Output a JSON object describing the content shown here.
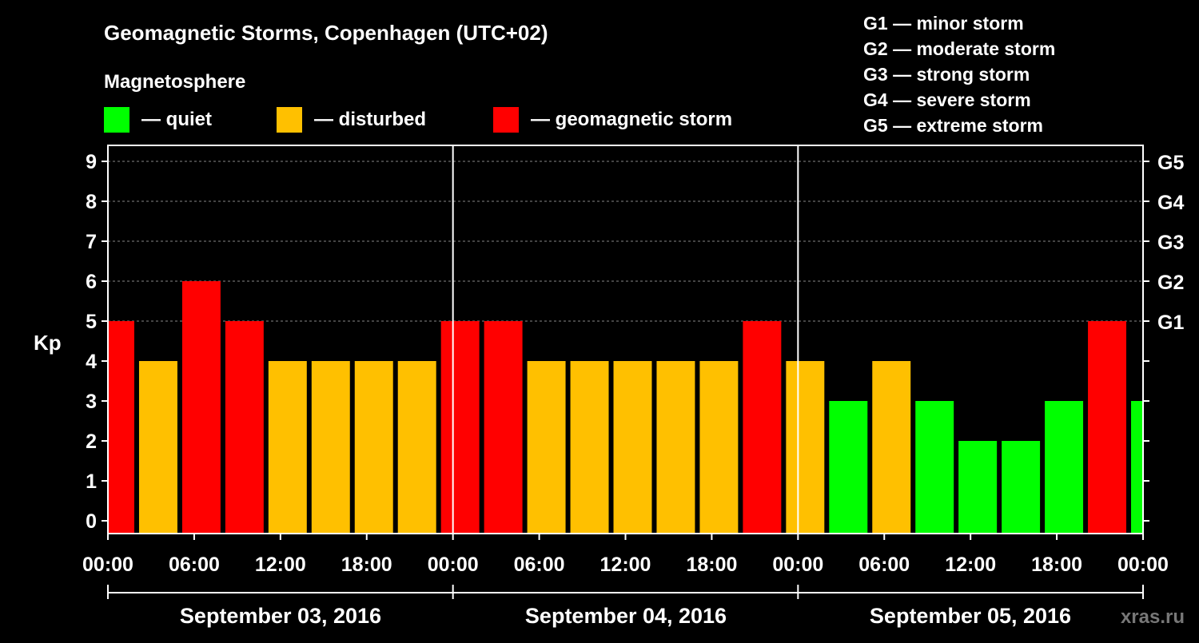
{
  "chart_data": {
    "type": "bar",
    "title": "Geomagnetic Storms, Copenhagen (UTC+02)",
    "legend_title": "Magnetosphere",
    "legend": [
      {
        "label": "— quiet",
        "color": "#00ff00"
      },
      {
        "label": "— disturbed",
        "color": "#ffc000"
      },
      {
        "label": "— geomagnetic storm",
        "color": "#ff0000"
      }
    ],
    "scale_legend": [
      "G1 — minor storm",
      "G2 — moderate storm",
      "G3 — strong storm",
      "G4 — severe storm",
      "G5 — extreme storm"
    ],
    "ylabel": "Kp",
    "ylim": [
      0,
      9
    ],
    "yticks": [
      "0",
      "1",
      "2",
      "3",
      "4",
      "5",
      "6",
      "7",
      "8",
      "9"
    ],
    "right_ticks": [
      {
        "kp": 5,
        "label": "G1"
      },
      {
        "kp": 6,
        "label": "G2"
      },
      {
        "kp": 7,
        "label": "G3"
      },
      {
        "kp": 8,
        "label": "G4"
      },
      {
        "kp": 9,
        "label": "G5"
      }
    ],
    "xlim_hours": [
      0,
      72
    ],
    "xticks": [
      "00:00",
      "06:00",
      "12:00",
      "18:00",
      "00:00",
      "06:00",
      "12:00",
      "18:00",
      "00:00",
      "06:00",
      "12:00",
      "18:00",
      "00:00"
    ],
    "days": [
      "September 03, 2016",
      "September 04, 2016",
      "September 05, 2016"
    ],
    "bar_start_hours": [
      -1,
      2,
      5,
      8,
      11,
      14,
      17,
      20,
      23,
      26,
      29,
      32,
      35,
      38,
      41,
      44,
      47,
      50,
      53,
      56,
      59,
      62,
      65,
      68,
      71
    ],
    "bar_duration_hours": 3,
    "values": [
      5,
      4,
      6,
      5,
      4,
      4,
      4,
      4,
      5,
      5,
      4,
      4,
      4,
      4,
      4,
      5,
      4,
      3,
      4,
      3,
      2,
      2,
      3,
      5,
      3
    ],
    "watermark": "xras.ru"
  }
}
